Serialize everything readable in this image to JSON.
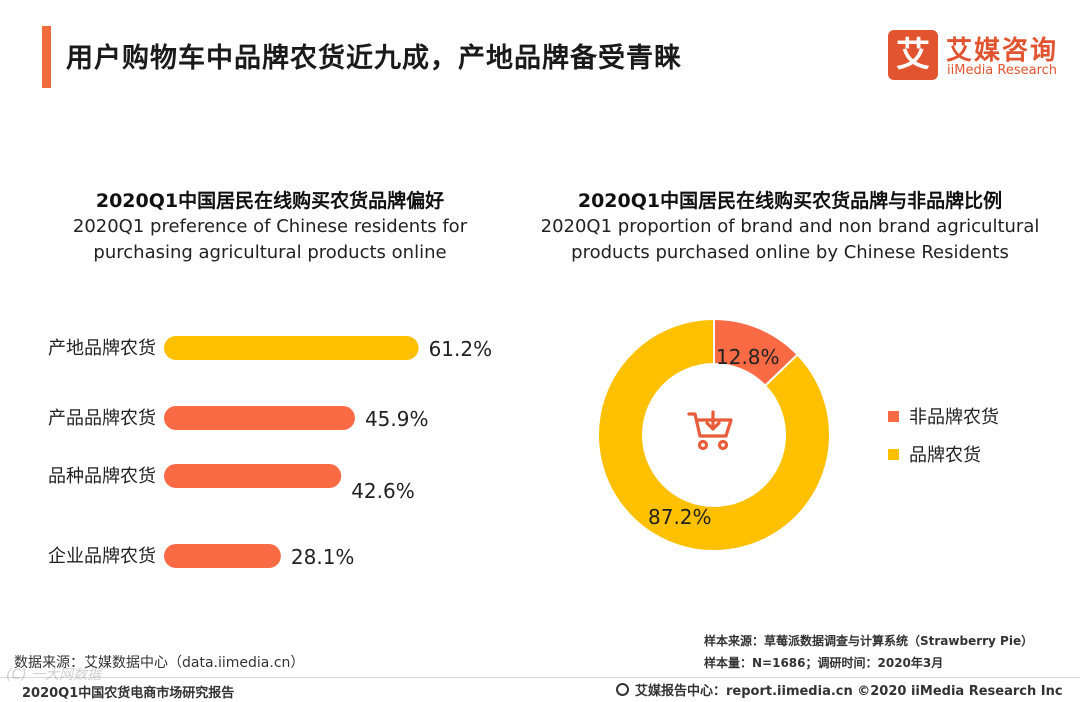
{
  "header": {
    "title": "用户购物车中品牌农货近九成，产地品牌备受青睐",
    "logo_mark": "艾",
    "logo_cn": "艾媒咨询",
    "logo_en": "iiMedia Research"
  },
  "colors": {
    "accent": "#f26b3a",
    "bar_highlight": "#ffc000",
    "bar_default": "#fa6b45",
    "donut_brand": "#ffc000",
    "donut_nonbrand": "#fa6b45",
    "cart_icon": "#e85c3a"
  },
  "chart_data": [
    {
      "type": "bar",
      "orientation": "horizontal",
      "title": "2020Q1中国居民在线购买农货品牌偏好",
      "subtitle_lines": [
        "2020Q1 preference of Chinese residents for",
        "purchasing agricultural products online"
      ],
      "categories": [
        "产地品牌农货",
        "产品品牌农货",
        "品种品牌农货",
        "企业品牌农货"
      ],
      "values": [
        61.2,
        45.9,
        42.6,
        28.1
      ],
      "value_labels": [
        "61.2%",
        "45.9%",
        "42.6%",
        "28.1%"
      ],
      "unit": "%",
      "xlim": [
        0,
        100
      ]
    },
    {
      "type": "pie",
      "style": "donut",
      "title": "2020Q1中国居民在线购买农货品牌与非品牌比例",
      "subtitle_lines": [
        "2020Q1 proportion of brand and non brand agricultural",
        "products purchased online by Chinese Residents"
      ],
      "categories": [
        "非品牌农货",
        "品牌农货"
      ],
      "values": [
        12.8,
        87.2
      ],
      "value_labels": [
        "12.8%",
        "87.2%"
      ],
      "center_icon": "shopping-cart-icon"
    }
  ],
  "source": {
    "sample_source": "样本来源：草莓派数据调查与计算系统（Strawberry Pie）",
    "sample_size": "样本量：N=1686；调研时间：2020年3月",
    "data_source": "数据来源：艾媒数据中心（data.iimedia.cn）"
  },
  "footer": {
    "left": "2020Q1中国农货电商市场研究报告",
    "right": "艾媒报告中心：report.iimedia.cn ©2020 iiMedia Research Inc",
    "watermark": "(C) 一大网数据"
  }
}
